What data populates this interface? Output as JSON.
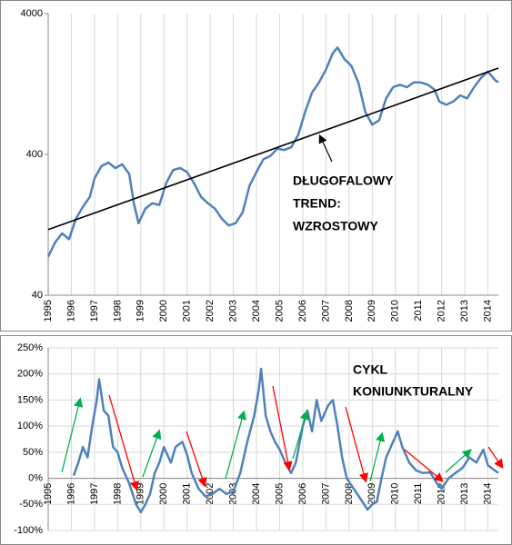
{
  "chart_data": [
    {
      "type": "line",
      "log_scale": true,
      "xgrid": true,
      "ygrid": false,
      "annotation_lines": [
        "DŁUGOFALOWY",
        "TREND:",
        "WZROSTOWY"
      ],
      "xlim": [
        1995,
        2014.45
      ],
      "xticks": [
        1995,
        1996,
        1997,
        1998,
        1999,
        2000,
        2001,
        2002,
        2003,
        2004,
        2005,
        2006,
        2007,
        2008,
        2009,
        2010,
        2011,
        2012,
        2013,
        2014
      ],
      "ylim": [
        40,
        4000
      ],
      "yticks": [
        40,
        400,
        4000
      ],
      "series": [
        {
          "color": "#4f81bd",
          "x": [
            1995.0,
            1995.3,
            1995.6,
            1995.9,
            1996.2,
            1996.5,
            1996.8,
            1997.0,
            1997.3,
            1997.6,
            1997.9,
            1998.2,
            1998.5,
            1998.7,
            1998.9,
            1999.2,
            1999.5,
            1999.8,
            2000.1,
            2000.4,
            2000.7,
            2001.0,
            2001.3,
            2001.6,
            2001.9,
            2002.2,
            2002.5,
            2002.8,
            2003.1,
            2003.4,
            2003.7,
            2004.0,
            2004.3,
            2004.6,
            2004.9,
            2005.2,
            2005.5,
            2005.8,
            2006.1,
            2006.4,
            2006.7,
            2007.0,
            2007.3,
            2007.5,
            2007.8,
            2008.1,
            2008.4,
            2008.7,
            2009.0,
            2009.3,
            2009.6,
            2009.9,
            2010.2,
            2010.5,
            2010.8,
            2011.1,
            2011.4,
            2011.7,
            2011.9,
            2012.2,
            2012.5,
            2012.8,
            2013.1,
            2013.4,
            2013.7,
            2014.0,
            2014.3,
            2014.45
          ],
          "values": [
            75,
            95,
            110,
            100,
            140,
            170,
            200,
            270,
            330,
            350,
            320,
            340,
            290,
            180,
            130,
            165,
            180,
            175,
            250,
            310,
            320,
            300,
            250,
            200,
            180,
            165,
            140,
            125,
            130,
            155,
            240,
            300,
            370,
            390,
            440,
            430,
            450,
            550,
            800,
            1100,
            1300,
            1600,
            2100,
            2300,
            1900,
            1700,
            1300,
            800,
            650,
            700,
            1000,
            1200,
            1250,
            1200,
            1300,
            1300,
            1250,
            1150,
            950,
            900,
            950,
            1050,
            1000,
            1200,
            1400,
            1550,
            1350,
            1300
          ]
        },
        {
          "color": "#000000",
          "x": [
            1995,
            2014.45
          ],
          "values": [
            117,
            1640
          ]
        }
      ]
    },
    {
      "type": "line",
      "log_scale": false,
      "xgrid": true,
      "ygrid": true,
      "annotation_lines": [
        "CYKL",
        "KONIUNKTURALNY"
      ],
      "xlim": [
        1995,
        2014.45
      ],
      "xticks": [
        1995,
        1996,
        1997,
        1998,
        1999,
        2000,
        2001,
        2002,
        2003,
        2004,
        2005,
        2006,
        2007,
        2008,
        2009,
        2010,
        2011,
        2012,
        2013,
        2014
      ],
      "ylim": [
        -100,
        250
      ],
      "yticks": [
        {
          "value": -100,
          "label": "-100%"
        },
        {
          "value": -50,
          "label": "-50%"
        },
        {
          "value": 0,
          "label": "0%"
        },
        {
          "value": 50,
          "label": "50%"
        },
        {
          "value": 100,
          "label": "100%"
        },
        {
          "value": 150,
          "label": "150%"
        },
        {
          "value": 200,
          "label": "200%"
        },
        {
          "value": 250,
          "label": "250%"
        }
      ],
      "series": [
        {
          "color": "#4f81bd",
          "x": [
            1996.1,
            1996.3,
            1996.5,
            1996.7,
            1996.9,
            1997.1,
            1997.2,
            1997.4,
            1997.6,
            1997.8,
            1998.0,
            1998.2,
            1998.5,
            1998.8,
            1999.0,
            1999.2,
            1999.4,
            1999.6,
            1999.8,
            2000.0,
            2000.3,
            2000.5,
            2000.8,
            2001.0,
            2001.2,
            2001.5,
            2001.8,
            2002.1,
            2002.4,
            2002.7,
            2003.0,
            2003.3,
            2003.6,
            2003.9,
            2004.1,
            2004.2,
            2004.4,
            2004.6,
            2004.8,
            2005.0,
            2005.3,
            2005.5,
            2005.7,
            2006.0,
            2006.2,
            2006.4,
            2006.6,
            2006.8,
            2007.1,
            2007.3,
            2007.5,
            2007.7,
            2007.9,
            2008.2,
            2008.5,
            2008.8,
            2009.0,
            2009.2,
            2009.4,
            2009.6,
            2009.8,
            2010.1,
            2010.3,
            2010.6,
            2010.9,
            2011.2,
            2011.5,
            2011.8,
            2012.0,
            2012.3,
            2012.6,
            2012.9,
            2013.2,
            2013.5,
            2013.8,
            2014.0,
            2014.3,
            2014.45
          ],
          "values": [
            5,
            30,
            60,
            40,
            100,
            150,
            190,
            130,
            120,
            60,
            50,
            20,
            -10,
            -50,
            -65,
            -50,
            -30,
            10,
            30,
            60,
            30,
            60,
            70,
            45,
            10,
            -20,
            -35,
            -30,
            -20,
            -30,
            -25,
            10,
            70,
            120,
            170,
            210,
            120,
            90,
            70,
            55,
            25,
            10,
            30,
            100,
            130,
            90,
            150,
            110,
            140,
            150,
            100,
            40,
            0,
            -20,
            -40,
            -60,
            -50,
            -45,
            0,
            40,
            60,
            90,
            60,
            30,
            15,
            10,
            12,
            -10,
            -20,
            0,
            10,
            20,
            40,
            30,
            55,
            25,
            15,
            10
          ]
        }
      ]
    }
  ]
}
